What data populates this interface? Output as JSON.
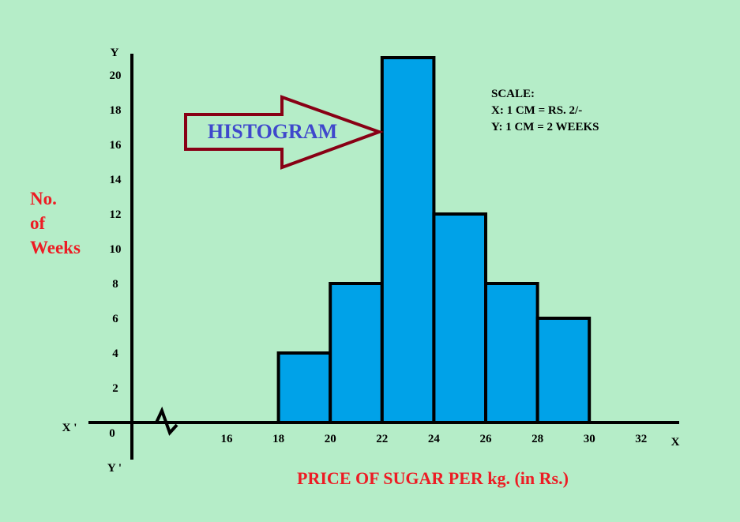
{
  "chart_data": {
    "type": "bar",
    "title": "HISTOGRAM",
    "xlabel": "PRICE OF SUGAR PER kg. (in Rs.)",
    "ylabel_lines": [
      "No.",
      "of",
      "Weeks"
    ],
    "bins": [
      {
        "from": 18,
        "to": 20,
        "value": 4
      },
      {
        "from": 20,
        "to": 22,
        "value": 8
      },
      {
        "from": 22,
        "to": 24,
        "value": 21
      },
      {
        "from": 24,
        "to": 26,
        "value": 12
      },
      {
        "from": 26,
        "to": 28,
        "value": 8
      },
      {
        "from": 28,
        "to": 30,
        "value": 6
      }
    ],
    "x_ticks": [
      "16",
      "18",
      "20",
      "22",
      "24",
      "26",
      "28",
      "30",
      "32"
    ],
    "y_ticks": [
      "2",
      "4",
      "6",
      "8",
      "10",
      "12",
      "14",
      "16",
      "18",
      "20"
    ],
    "origin_label": "0",
    "axis_labels": {
      "x": "X",
      "x_neg": "X '",
      "y": "Y",
      "y_neg": "Y '"
    },
    "ylim": [
      0,
      21
    ],
    "xlim": [
      16,
      32
    ],
    "axis_break": true,
    "scale": {
      "heading": "SCALE:",
      "x": "X: 1 CM = RS. 2/-",
      "y": "Y: 1 CM = 2 WEEKS"
    },
    "colors": {
      "background": "#b5edc8",
      "bars": "#00a2e8",
      "axis": "#000000",
      "title": "#3f48cc",
      "labels": "#ed1c24",
      "arrow": "#880015"
    }
  }
}
